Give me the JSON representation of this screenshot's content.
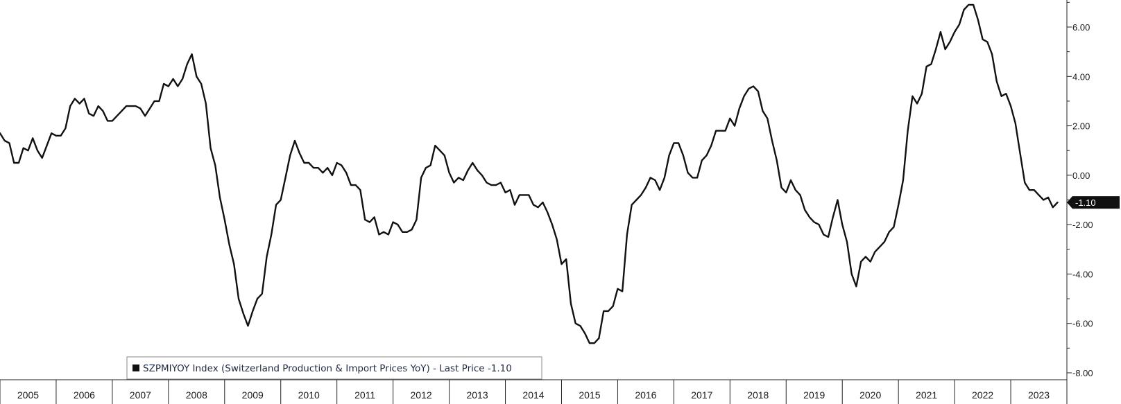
{
  "chart_data": {
    "type": "line",
    "ylim": [
      -8.3,
      7.0
    ],
    "yticks": [
      6,
      4,
      2,
      0,
      -2,
      -4,
      -6,
      -8
    ],
    "ytick_labels": [
      "6.00",
      "4.00",
      "2.00",
      "0.00",
      "-2.00",
      "-4.00",
      "-6.00",
      "-8.00"
    ],
    "x_year_start": 2005,
    "x_year_end": 2024,
    "year_labels": [
      "2005",
      "2006",
      "2007",
      "2008",
      "2009",
      "2010",
      "2011",
      "2012",
      "2013",
      "2014",
      "2015",
      "2016",
      "2017",
      "2018",
      "2019",
      "2020",
      "2021",
      "2022",
      "2023"
    ],
    "grid": false,
    "legend": {
      "position": "bottom-left",
      "text": "SZPMIYOY Index (Switzerland Production & Import Prices YoY) - Last Price -1.10"
    },
    "last_value": {
      "value": -1.1,
      "label": "-1.10"
    },
    "series": [
      {
        "name": "SZPMIYOY Index (Switzerland Production & Import Prices YoY)",
        "color": "#111111",
        "start": "2005-01",
        "frequency": "monthly",
        "values": [
          1.7,
          1.4,
          1.3,
          0.5,
          0.5,
          1.1,
          1.0,
          1.5,
          1.0,
          0.7,
          1.2,
          1.7,
          1.6,
          1.6,
          1.9,
          2.8,
          3.1,
          2.9,
          3.1,
          2.5,
          2.4,
          2.8,
          2.6,
          2.2,
          2.2,
          2.4,
          2.6,
          2.8,
          2.8,
          2.8,
          2.7,
          2.4,
          2.7,
          3.0,
          3.0,
          3.7,
          3.6,
          3.9,
          3.6,
          3.9,
          4.5,
          4.9,
          4.0,
          3.7,
          2.9,
          1.1,
          0.4,
          -0.9,
          -1.8,
          -2.8,
          -3.6,
          -5.0,
          -5.6,
          -6.1,
          -5.5,
          -5.0,
          -4.8,
          -3.3,
          -2.4,
          -1.2,
          -1.0,
          -0.1,
          0.8,
          1.4,
          0.9,
          0.5,
          0.5,
          0.3,
          0.3,
          0.1,
          0.3,
          0.0,
          0.5,
          0.4,
          0.1,
          -0.4,
          -0.4,
          -0.6,
          -1.8,
          -1.9,
          -1.7,
          -2.4,
          -2.3,
          -2.4,
          -1.9,
          -2.0,
          -2.3,
          -2.3,
          -2.2,
          -1.8,
          -0.1,
          0.3,
          0.4,
          1.2,
          1.0,
          0.8,
          0.1,
          -0.3,
          -0.1,
          -0.2,
          0.2,
          0.5,
          0.2,
          0.0,
          -0.3,
          -0.4,
          -0.4,
          -0.3,
          -0.7,
          -0.6,
          -1.2,
          -0.8,
          -0.8,
          -0.8,
          -1.2,
          -1.3,
          -1.1,
          -1.5,
          -2.0,
          -2.6,
          -3.6,
          -3.4,
          -5.2,
          -6.0,
          -6.1,
          -6.4,
          -6.8,
          -6.8,
          -6.6,
          -5.5,
          -5.5,
          -5.3,
          -4.6,
          -4.7,
          -2.4,
          -1.2,
          -1.0,
          -0.8,
          -0.5,
          -0.1,
          -0.2,
          -0.6,
          -0.1,
          0.8,
          1.3,
          1.3,
          0.8,
          0.1,
          -0.1,
          -0.1,
          0.6,
          0.8,
          1.2,
          1.8,
          1.8,
          1.8,
          2.3,
          2.0,
          2.7,
          3.2,
          3.5,
          3.6,
          3.4,
          2.6,
          2.3,
          1.4,
          0.6,
          -0.5,
          -0.7,
          -0.2,
          -0.6,
          -0.8,
          -1.4,
          -1.7,
          -1.9,
          -2.0,
          -2.4,
          -2.5,
          -1.7,
          -1.0,
          -2.0,
          -2.7,
          -4.0,
          -4.5,
          -3.5,
          -3.3,
          -3.5,
          -3.1,
          -2.9,
          -2.7,
          -2.3,
          -2.1,
          -1.2,
          -0.2,
          1.8,
          3.2,
          2.9,
          3.3,
          4.4,
          4.5,
          5.1,
          5.8,
          5.1,
          5.4,
          5.8,
          6.1,
          6.7,
          6.9,
          6.9,
          6.3,
          5.5,
          5.4,
          4.9,
          3.8,
          3.2,
          3.3,
          2.8,
          2.1,
          0.9,
          -0.3,
          -0.6,
          -0.6,
          -0.8,
          -1.0,
          -0.9,
          -1.3,
          -1.1
        ]
      }
    ]
  }
}
